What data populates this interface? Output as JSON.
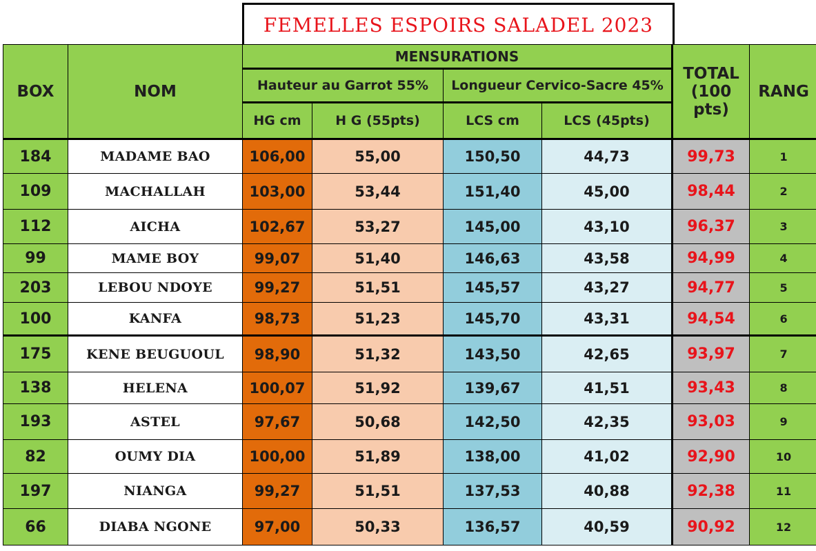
{
  "title": "FEMELLES ESPOIRS SALADEL 2023",
  "headers": {
    "box": "BOX",
    "nom": "NOM",
    "mensurations": "MENSURATIONS",
    "hauteur_group": "Hauteur au Garrot 55%",
    "longueur_group": "Longueur Cervico-Sacre 45%",
    "hg_cm": "HG cm",
    "hg_pts": "H G (55pts)",
    "lcs_cm": "LCS cm",
    "lcs_pts": "LCS (45pts)",
    "total_line1": "TOTAL",
    "total_line2": "(100 pts)",
    "rang": "RANG"
  },
  "colors": {
    "header_green": "#92d050",
    "hg_cm_orange": "#e26b0a",
    "hg_pts_peach": "#f8cbad",
    "lcs_cm_blue": "#92cddc",
    "lcs_pts_lightblue": "#daeef3",
    "total_gray": "#bfbfbf",
    "total_text_red": "#e8141b"
  },
  "rows": [
    {
      "box": "184",
      "nom": "MADAME BAO",
      "hg_cm": "106,00",
      "hg_pts": "55,00",
      "lcs_cm": "150,50",
      "lcs_pts": "44,73",
      "total": "99,73",
      "rang": "1"
    },
    {
      "box": "109",
      "nom": "MACHALLAH",
      "hg_cm": "103,00",
      "hg_pts": "53,44",
      "lcs_cm": "151,40",
      "lcs_pts": "45,00",
      "total": "98,44",
      "rang": "2"
    },
    {
      "box": "112",
      "nom": "AICHA",
      "hg_cm": "102,67",
      "hg_pts": "53,27",
      "lcs_cm": "145,00",
      "lcs_pts": "43,10",
      "total": "96,37",
      "rang": "3"
    },
    {
      "box": "99",
      "nom": "MAME BOY",
      "hg_cm": "99,07",
      "hg_pts": "51,40",
      "lcs_cm": "146,63",
      "lcs_pts": "43,58",
      "total": "94,99",
      "rang": "4"
    },
    {
      "box": "203",
      "nom": "LEBOU NDOYE",
      "hg_cm": "99,27",
      "hg_pts": "51,51",
      "lcs_cm": "145,57",
      "lcs_pts": "43,27",
      "total": "94,77",
      "rang": "5"
    },
    {
      "box": "100",
      "nom": "KANFA",
      "hg_cm": "98,73",
      "hg_pts": "51,23",
      "lcs_cm": "145,70",
      "lcs_pts": "43,31",
      "total": "94,54",
      "rang": "6"
    },
    {
      "box": "175",
      "nom": "KENE BEUGUOUL",
      "hg_cm": "98,90",
      "hg_pts": "51,32",
      "lcs_cm": "143,50",
      "lcs_pts": "42,65",
      "total": "93,97",
      "rang": "7"
    },
    {
      "box": "138",
      "nom": "HELENA",
      "hg_cm": "100,07",
      "hg_pts": "51,92",
      "lcs_cm": "139,67",
      "lcs_pts": "41,51",
      "total": "93,43",
      "rang": "8"
    },
    {
      "box": "193",
      "nom": "ASTEL",
      "hg_cm": "97,67",
      "hg_pts": "50,68",
      "lcs_cm": "142,50",
      "lcs_pts": "42,35",
      "total": "93,03",
      "rang": "9"
    },
    {
      "box": "82",
      "nom": "OUMY DIA",
      "hg_cm": "100,00",
      "hg_pts": "51,89",
      "lcs_cm": "138,00",
      "lcs_pts": "41,02",
      "total": "92,90",
      "rang": "10"
    },
    {
      "box": "197",
      "nom": "NIANGA",
      "hg_cm": "99,27",
      "hg_pts": "51,51",
      "lcs_cm": "137,53",
      "lcs_pts": "40,88",
      "total": "92,38",
      "rang": "11"
    },
    {
      "box": "66",
      "nom": "DIABA NGONE",
      "hg_cm": "97,00",
      "hg_pts": "50,33",
      "lcs_cm": "136,57",
      "lcs_pts": "40,59",
      "total": "90,92",
      "rang": "12"
    }
  ]
}
